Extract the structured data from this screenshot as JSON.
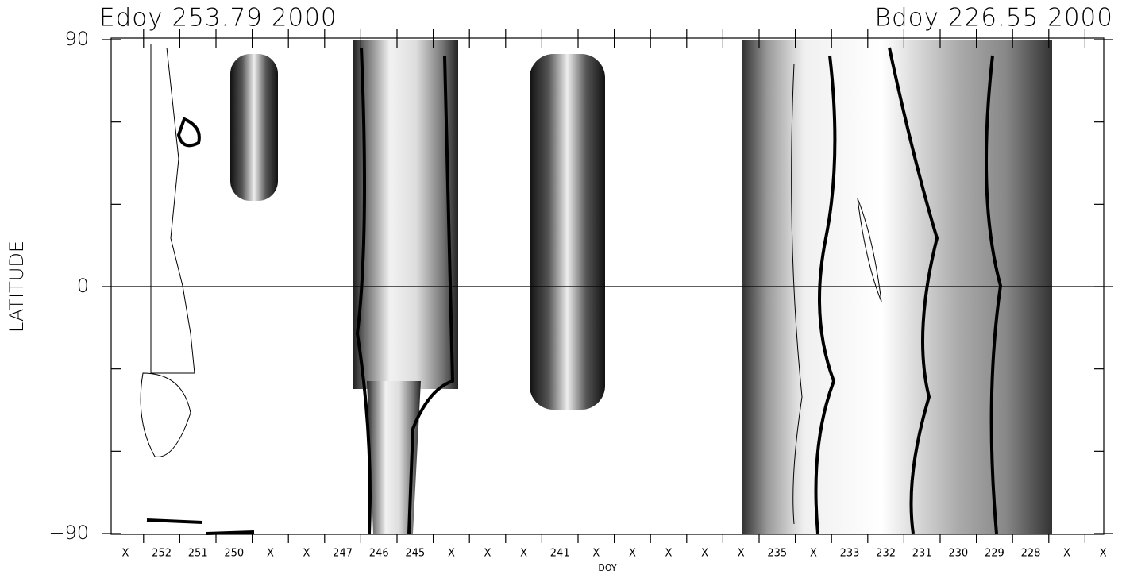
{
  "chart_data": {
    "type": "contour",
    "title_left": "Edoy 253.79 2000",
    "title_right": "Bdoy 226.55 2000",
    "ylabel": "LATITUDE",
    "xlabel": "DOY",
    "categories": [
      "X",
      "252",
      "251",
      "250",
      "X",
      "X",
      "247",
      "246",
      "245",
      "X",
      "X",
      "X",
      "241",
      "X",
      "X",
      "X",
      "X",
      "X",
      "235",
      "X",
      "233",
      "232",
      "231",
      "230",
      "229",
      "228",
      "X",
      "X"
    ],
    "ylim": [
      -90,
      90
    ],
    "yticks": [
      {
        "value": -90,
        "label": "−90"
      },
      0,
      90
    ],
    "yminor": [
      -60,
      -30,
      30,
      60
    ]
  }
}
